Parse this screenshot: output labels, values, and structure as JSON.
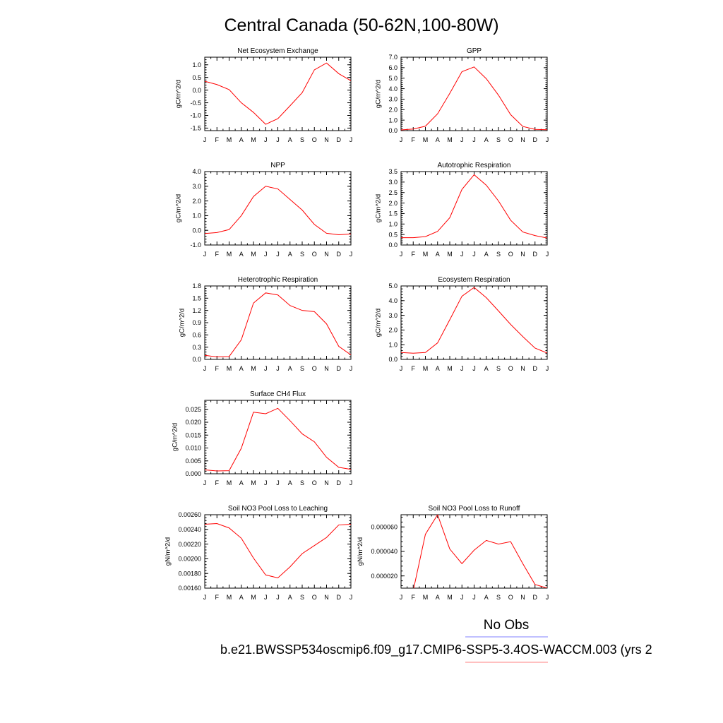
{
  "figure": {
    "title": "Central Canada (50-62N,100-80W)",
    "legend_obs_label": "No Obs",
    "case_label": "b.e21.BWSSP534oscmip6.f09_g17.CMIP6-SSP5-3.4OS-WACCM.003 (yrs 2",
    "colors": {
      "model_line": "#ff0000",
      "obs_line": "#8080ff",
      "case_underline": "#ff8080",
      "axes": "#000000"
    }
  },
  "chart_data": [
    {
      "type": "line",
      "title": "Net Ecosystem Exchange",
      "ylabel": "gC/m^2/d",
      "categories": [
        "J",
        "F",
        "M",
        "A",
        "M",
        "J",
        "J",
        "A",
        "S",
        "O",
        "N",
        "D",
        "J"
      ],
      "values": [
        0.35,
        0.22,
        0.02,
        -0.5,
        -0.88,
        -1.35,
        -1.13,
        -0.62,
        -0.1,
        0.8,
        1.07,
        0.65,
        0.37
      ],
      "ylim": [
        -1.6,
        1.3
      ],
      "yticks": [
        -1.5,
        -1.0,
        -0.5,
        0.0,
        0.5,
        1.0
      ],
      "ytick_labels": [
        "-1.5",
        "-1.0",
        "-0.5",
        "0.0",
        "0.5",
        "1.0"
      ]
    },
    {
      "type": "line",
      "title": "GPP",
      "ylabel": "gC/m^2/d",
      "categories": [
        "J",
        "F",
        "M",
        "A",
        "M",
        "J",
        "J",
        "A",
        "S",
        "O",
        "N",
        "D",
        "J"
      ],
      "values": [
        0.07,
        0.15,
        0.42,
        1.6,
        3.55,
        5.62,
        6.07,
        4.95,
        3.38,
        1.52,
        0.4,
        0.12,
        0.08
      ],
      "ylim": [
        0.0,
        7.0
      ],
      "yticks": [
        0.0,
        1.0,
        2.0,
        3.0,
        4.0,
        5.0,
        6.0,
        7.0
      ],
      "ytick_labels": [
        "0.0",
        "1.0",
        "2.0",
        "3.0",
        "4.0",
        "5.0",
        "6.0",
        "7.0"
      ]
    },
    {
      "type": "line",
      "title": "NPP",
      "ylabel": "gC/m^2/d",
      "categories": [
        "J",
        "F",
        "M",
        "A",
        "M",
        "J",
        "J",
        "A",
        "S",
        "O",
        "N",
        "D",
        "J"
      ],
      "values": [
        -0.22,
        -0.15,
        0.05,
        1.0,
        2.3,
        3.0,
        2.82,
        2.1,
        1.38,
        0.4,
        -0.2,
        -0.3,
        -0.25
      ],
      "ylim": [
        -1.0,
        4.0
      ],
      "yticks": [
        -1.0,
        0.0,
        1.0,
        2.0,
        3.0,
        4.0
      ],
      "ytick_labels": [
        "-1.0",
        "0.0",
        "1.0",
        "2.0",
        "3.0",
        "4.0"
      ]
    },
    {
      "type": "line",
      "title": "Autotrophic Respiration",
      "ylabel": "gC/m^2/d",
      "categories": [
        "J",
        "F",
        "M",
        "A",
        "M",
        "J",
        "J",
        "A",
        "S",
        "O",
        "N",
        "D",
        "J"
      ],
      "values": [
        0.35,
        0.35,
        0.4,
        0.65,
        1.3,
        2.65,
        3.35,
        2.85,
        2.1,
        1.18,
        0.62,
        0.45,
        0.33
      ],
      "ylim": [
        0.0,
        3.5
      ],
      "yticks": [
        0.0,
        0.5,
        1.0,
        1.5,
        2.0,
        2.5,
        3.0,
        3.5
      ],
      "ytick_labels": [
        "0.0",
        "0.5",
        "1.0",
        "1.5",
        "2.0",
        "2.5",
        "3.0",
        "3.5"
      ]
    },
    {
      "type": "line",
      "title": "Heterotrophic Respiration",
      "ylabel": "gC/m^2/d",
      "categories": [
        "J",
        "F",
        "M",
        "A",
        "M",
        "J",
        "J",
        "A",
        "S",
        "O",
        "N",
        "D",
        "J"
      ],
      "values": [
        0.1,
        0.06,
        0.07,
        0.48,
        1.38,
        1.63,
        1.58,
        1.32,
        1.2,
        1.17,
        0.87,
        0.32,
        0.11
      ],
      "ylim": [
        0.0,
        1.8
      ],
      "yticks": [
        0.0,
        0.3,
        0.6,
        0.9,
        1.2,
        1.5,
        1.8
      ],
      "ytick_labels": [
        "0.0",
        "0.3",
        "0.6",
        "0.9",
        "1.2",
        "1.5",
        "1.8"
      ]
    },
    {
      "type": "line",
      "title": "Ecosystem Respiration",
      "ylabel": "gC/m^2/d",
      "categories": [
        "J",
        "F",
        "M",
        "A",
        "M",
        "J",
        "J",
        "A",
        "S",
        "O",
        "N",
        "D",
        "J"
      ],
      "values": [
        0.47,
        0.42,
        0.47,
        1.12,
        2.7,
        4.3,
        4.9,
        4.2,
        3.3,
        2.38,
        1.55,
        0.77,
        0.43
      ],
      "ylim": [
        0.0,
        5.0
      ],
      "yticks": [
        0.0,
        1.0,
        2.0,
        3.0,
        4.0,
        5.0
      ],
      "ytick_labels": [
        "0.0",
        "1.0",
        "2.0",
        "3.0",
        "4.0",
        "5.0"
      ]
    },
    {
      "type": "line",
      "title": "Surface CH4 Flux",
      "ylabel": "gC/m^2/d",
      "categories": [
        "J",
        "F",
        "M",
        "A",
        "M",
        "J",
        "J",
        "A",
        "S",
        "O",
        "N",
        "D",
        "J"
      ],
      "values": [
        0.0015,
        0.0011,
        0.0012,
        0.0099,
        0.0239,
        0.0233,
        0.0254,
        0.0206,
        0.0155,
        0.0124,
        0.0064,
        0.0025,
        0.0017
      ],
      "ylim": [
        0.0,
        0.0285
      ],
      "yticks": [
        0.0,
        0.005,
        0.01,
        0.015,
        0.02,
        0.025
      ],
      "ytick_labels": [
        "0.000",
        "0.005",
        "0.010",
        "0.015",
        "0.020",
        "0.025"
      ]
    },
    {
      "type": "line",
      "title": "Soil NO3 Pool Loss to Leaching",
      "ylabel": "gN/m^2/d",
      "categories": [
        "J",
        "F",
        "M",
        "A",
        "M",
        "J",
        "J",
        "A",
        "S",
        "O",
        "N",
        "D",
        "J"
      ],
      "values": [
        0.00247,
        0.00248,
        0.00242,
        0.00228,
        0.00201,
        0.00178,
        0.00174,
        0.00189,
        0.00207,
        0.00218,
        0.00229,
        0.00246,
        0.00247
      ],
      "ylim": [
        0.0016,
        0.0026
      ],
      "yticks": [
        0.0016,
        0.0018,
        0.002,
        0.0022,
        0.0024,
        0.0026
      ],
      "ytick_labels": [
        "0.00160",
        "0.00180",
        "0.00200",
        "0.00220",
        "0.00240",
        "0.00260"
      ]
    },
    {
      "type": "line",
      "title": "Soil NO3 Pool Loss to Runoff",
      "ylabel": "gN/m^2/d",
      "categories": [
        "J",
        "F",
        "M",
        "A",
        "M",
        "J",
        "J",
        "A",
        "S",
        "O",
        "N",
        "D",
        "J"
      ],
      "values": [
        5e-06,
        8e-06,
        5.4e-05,
        7e-05,
        4.2e-05,
        3e-05,
        4.1e-05,
        4.9e-05,
        4.6e-05,
        4.8e-05,
        3e-05,
        1.3e-05,
        1e-05
      ],
      "ylim": [
        1e-05,
        7e-05
      ],
      "yticks": [
        2e-05,
        4e-05,
        6e-05
      ],
      "ytick_labels": [
        "0.000020",
        "0.000040",
        "0.000060"
      ]
    }
  ]
}
